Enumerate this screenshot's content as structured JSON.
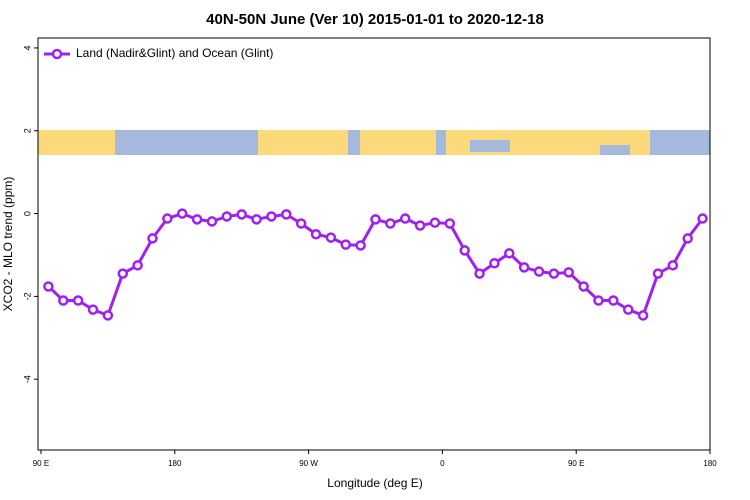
{
  "chart_data": {
    "type": "line",
    "title": "40N-50N June (Ver 10)   2015-01-01 to 2020-12-18",
    "xlabel": "Longitude (deg E)",
    "ylabel": "XCO2 - MLO trend (ppm)",
    "x": [
      95,
      105,
      115,
      125,
      135,
      145,
      155,
      165,
      175,
      185,
      195,
      205,
      215,
      225,
      235,
      245,
      255,
      265,
      275,
      285,
      295,
      305,
      315,
      325,
      335,
      345,
      355,
      365,
      375,
      385,
      395,
      405,
      415,
      425,
      435,
      445,
      455,
      465,
      475,
      485,
      495,
      505,
      515,
      525,
      535
    ],
    "series": [
      {
        "name": "Land (Nadir&Glint) and Ocean (Glint)",
        "color": "#a020f0",
        "values": [
          -1.76,
          -2.1,
          -2.1,
          -2.32,
          -2.46,
          -1.45,
          -1.25,
          -0.6,
          -0.12,
          0,
          -0.14,
          -0.19,
          -0.07,
          -0.02,
          -0.14,
          -0.07,
          -0.02,
          -0.24,
          -0.5,
          -0.58,
          -0.75,
          -0.77,
          -0.14,
          -0.24,
          -0.12,
          -0.29,
          -0.22,
          -0.24,
          -0.89,
          -1.45,
          -1.2,
          -0.96,
          -1.3,
          -1.4,
          -1.45,
          -1.42,
          -1.76,
          -2.1,
          -2.1,
          -2.32,
          -2.46,
          -1.45,
          -1.25,
          -0.6,
          -0.12
        ]
      }
    ],
    "xlim": [
      88,
      540
    ],
    "xticks": [
      {
        "value": 90,
        "label": "90 E"
      },
      180,
      {
        "value": 270,
        "label": "90 W"
      },
      {
        "value": 360,
        "label": "0"
      },
      {
        "value": 450,
        "label": "90 E"
      },
      {
        "value": 540,
        "label": "180"
      }
    ],
    "ylim": [
      -5.71,
      4.24
    ],
    "yticks": [
      -4,
      -2,
      0,
      2,
      4
    ],
    "legend": "topleft"
  }
}
